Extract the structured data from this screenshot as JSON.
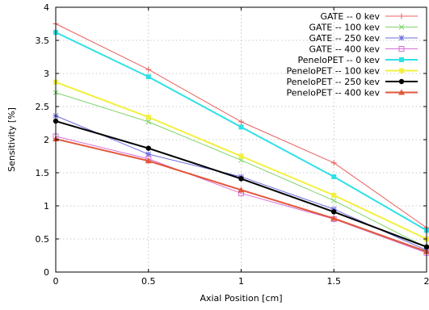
{
  "chart_data": {
    "type": "line",
    "title": "",
    "xlabel": "Axial Position [cm]",
    "ylabel": "Sensitivity [%]",
    "xlim": [
      0,
      2
    ],
    "ylim": [
      0,
      4
    ],
    "xticks": [
      0,
      0.5,
      1,
      1.5,
      2
    ],
    "yticks": [
      0,
      0.5,
      1,
      1.5,
      2,
      2.5,
      3,
      3.5,
      4
    ],
    "grid": true,
    "legend_position": "top-right",
    "x": [
      0,
      0.5,
      1,
      1.5,
      2
    ],
    "series": [
      {
        "name": "GATE -- 0 kev",
        "color": "#e8605f",
        "marker": "plus",
        "thick": false,
        "values": [
          3.75,
          3.06,
          2.27,
          1.65,
          0.67
        ]
      },
      {
        "name": "GATE -- 100 kev",
        "color": "#7ed36b",
        "marker": "cross",
        "thick": false,
        "values": [
          2.71,
          2.27,
          1.69,
          1.08,
          0.37
        ]
      },
      {
        "name": "GATE -- 250 kev",
        "color": "#6b6bdf",
        "marker": "star",
        "thick": false,
        "values": [
          2.36,
          1.78,
          1.44,
          0.95,
          0.33
        ]
      },
      {
        "name": "GATE -- 400 kev",
        "color": "#d56fd5",
        "marker": "open-square",
        "thick": false,
        "values": [
          2.05,
          1.71,
          1.19,
          0.8,
          0.29
        ]
      },
      {
        "name": "PeneloPET -- 0 kev",
        "color": "#2fe0e6",
        "marker": "filled-square",
        "thick": true,
        "values": [
          3.62,
          2.95,
          2.19,
          1.44,
          0.63
        ]
      },
      {
        "name": "PeneloPET -- 100 kev",
        "color": "#f2f03c",
        "marker": "filled-square",
        "thick": true,
        "values": [
          2.87,
          2.34,
          1.75,
          1.16,
          0.5
        ]
      },
      {
        "name": "PeneloPET -- 250 kev",
        "color": "#000000",
        "marker": "filled-circle",
        "thick": true,
        "values": [
          2.28,
          1.87,
          1.41,
          0.91,
          0.38
        ]
      },
      {
        "name": "PeneloPET -- 400 kev",
        "color": "#e2573a",
        "marker": "filled-triangle",
        "thick": true,
        "values": [
          2.01,
          1.68,
          1.24,
          0.81,
          0.31
        ]
      }
    ]
  }
}
